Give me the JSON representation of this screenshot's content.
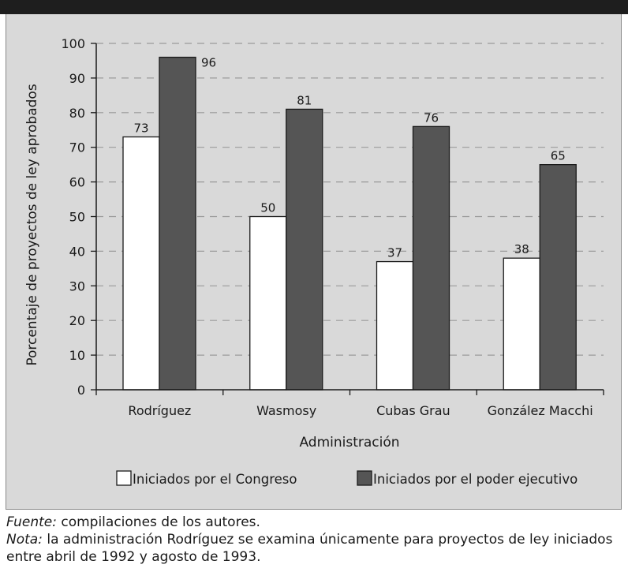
{
  "chart_data": {
    "type": "bar",
    "categories": [
      "Rodríguez",
      "Wasmosy",
      "Cubas Grau",
      "González Macchi"
    ],
    "series": [
      {
        "name": "Iniciados por el Congreso",
        "values": [
          73,
          50,
          37,
          38
        ],
        "color": "#ffffff"
      },
      {
        "name": "Iniciados por el poder ejecutivo",
        "values": [
          96,
          81,
          76,
          65
        ],
        "color": "#555555"
      }
    ],
    "data_labels": [
      [
        "73",
        "50",
        "37",
        "38"
      ],
      [
        "96",
        "81",
        "76",
        "65"
      ]
    ],
    "xlabel": "Administración",
    "ylabel": "Porcentaje de proyectos de ley aprobados",
    "ylim": [
      0,
      100
    ],
    "yticks": [
      0,
      10,
      20,
      30,
      40,
      50,
      60,
      70,
      80,
      90,
      100
    ],
    "ytick_labels": [
      "0",
      "10",
      "20",
      "30",
      "40",
      "50",
      "60",
      "70",
      "80",
      "90",
      "100"
    ],
    "grid": true,
    "legend_position": "bottom"
  },
  "notes": {
    "source_label": "Fuente:",
    "source_text": " compilaciones de los autores.",
    "note_label": "Nota:",
    "note_text": " la administración Rodríguez se examina únicamente para proyectos de ley iniciados entre abril de 1992 y agosto de 1993."
  }
}
